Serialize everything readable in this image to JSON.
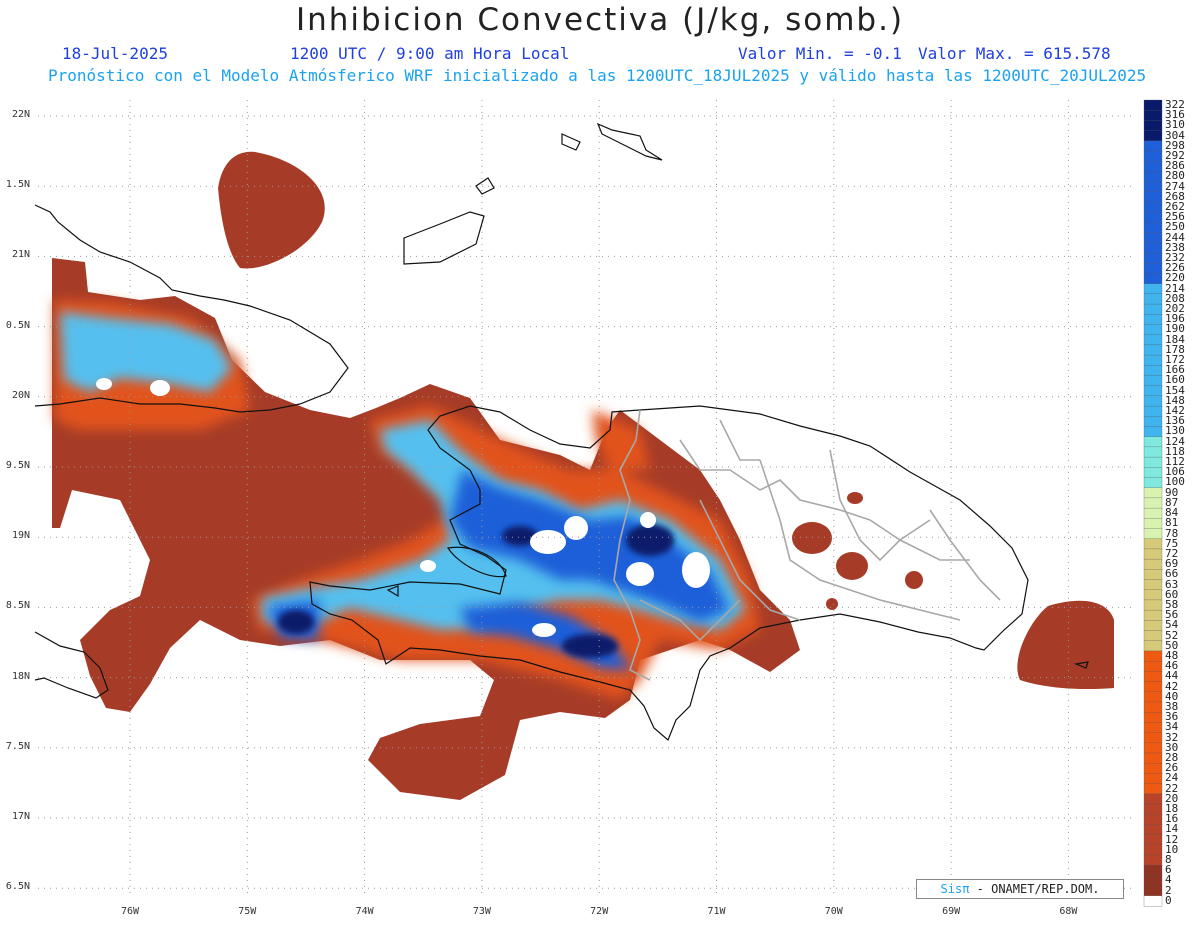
{
  "title": "Inhibicion Convectiva (J/kg, somb.)",
  "date": "18-Jul-2025",
  "valid_time": "1200 UTC / 9:00 am Hora Local",
  "min_label": "Valor Min. = -0.1",
  "max_label": "Valor Max. = 615.578",
  "forecast_line": "Pronóstico con el Modelo Atmósferico WRF inicializado a las 1200UTC_18JUL2025 y válido hasta las  1200UTC_20JUL2025",
  "credit": {
    "brand": "Sisπ",
    "text": " - ONAMET/REP.DOM."
  },
  "lat_labels": [
    "22N",
    "1.5N",
    "21N",
    "0.5N",
    "20N",
    "9.5N",
    "19N",
    "8.5N",
    "18N",
    "7.5N",
    "17N",
    "6.5N"
  ],
  "lon_labels": [
    "76W",
    "75W",
    "74W",
    "73W",
    "72W",
    "71W",
    "70W",
    "69W",
    "68W"
  ],
  "colorbar": {
    "labels": [
      "322",
      "316",
      "310",
      "304",
      "298",
      "292",
      "286",
      "280",
      "274",
      "268",
      "262",
      "256",
      "250",
      "244",
      "238",
      "232",
      "226",
      "220",
      "214",
      "208",
      "202",
      "196",
      "190",
      "184",
      "178",
      "172",
      "166",
      "160",
      "154",
      "148",
      "142",
      "136",
      "130",
      "124",
      "118",
      "112",
      "106",
      "100",
      "90",
      "87",
      "84",
      "81",
      "78",
      "75",
      "72",
      "69",
      "66",
      "63",
      "60",
      "58",
      "56",
      "54",
      "52",
      "50",
      "48",
      "46",
      "44",
      "42",
      "40",
      "38",
      "36",
      "34",
      "32",
      "30",
      "28",
      "26",
      "24",
      "22",
      "20",
      "18",
      "16",
      "14",
      "12",
      "10",
      "8",
      "6",
      "4",
      "2",
      "0"
    ],
    "colors": {
      "deep_blue": "#0a1a6b",
      "blue": "#1f5fd8",
      "light_blue": "#3fb4ee",
      "cyan": "#7fe8df",
      "pale_green": "#d8f2b0",
      "tan": "#d7c97a",
      "orange": "#ef5a12",
      "red_brown": "#b8432b",
      "dark_brown": "#8f3325",
      "white": "#ffffff"
    }
  }
}
